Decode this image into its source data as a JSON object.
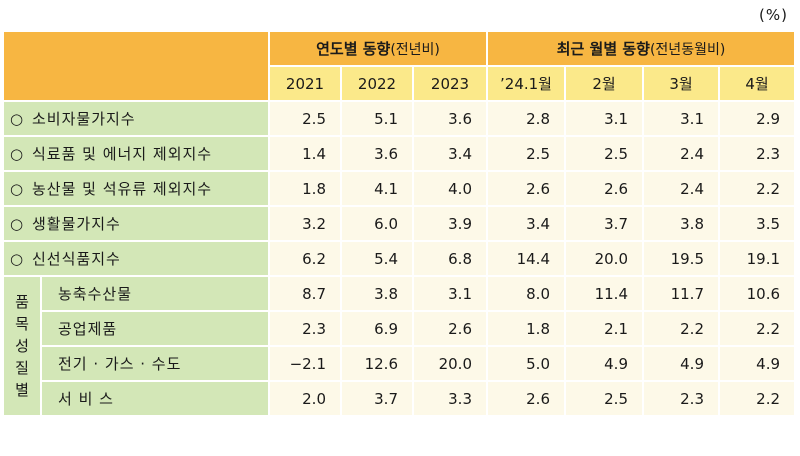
{
  "unit": "(%)",
  "header": {
    "group_annual": "연도별 동향",
    "group_annual_note": "(전년비)",
    "group_monthly": "최근 월별 동향",
    "group_monthly_note": "(전년동월비)",
    "columns": [
      "2021",
      "2022",
      "2023",
      "’24.1월",
      "2월",
      "3월",
      "4월"
    ]
  },
  "rows": [
    {
      "bullet": "○",
      "label": "소비자물가지수",
      "values": [
        "2.5",
        "5.1",
        "3.6",
        "2.8",
        "3.1",
        "3.1",
        "2.9"
      ]
    },
    {
      "bullet": "○",
      "label": "식료품 및 에너지 제외지수",
      "values": [
        "1.4",
        "3.6",
        "3.4",
        "2.5",
        "2.5",
        "2.4",
        "2.3"
      ]
    },
    {
      "bullet": "○",
      "label": "농산물 및 석유류 제외지수",
      "values": [
        "1.8",
        "4.1",
        "4.0",
        "2.6",
        "2.6",
        "2.4",
        "2.2"
      ]
    },
    {
      "bullet": "○",
      "label": "생활물가지수",
      "values": [
        "3.2",
        "6.0",
        "3.9",
        "3.4",
        "3.7",
        "3.8",
        "3.5"
      ]
    },
    {
      "bullet": "○",
      "label": "신선식품지수",
      "values": [
        "6.2",
        "5.4",
        "6.8",
        "14.4",
        "20.0",
        "19.5",
        "19.1"
      ]
    }
  ],
  "group_label_chars": [
    "품",
    "목",
    "성",
    "질",
    "별"
  ],
  "sub_rows": [
    {
      "label": "농축수산물",
      "values": [
        "8.7",
        "3.8",
        "3.1",
        "8.0",
        "11.4",
        "11.7",
        "10.6"
      ]
    },
    {
      "label": "공업제품",
      "values": [
        "2.3",
        "6.9",
        "2.6",
        "1.8",
        "2.1",
        "2.2",
        "2.2"
      ]
    },
    {
      "label": "전기 · 가스 · 수도",
      "values": [
        "−2.1",
        "12.6",
        "20.0",
        "5.0",
        "4.9",
        "4.9",
        "4.9"
      ]
    },
    {
      "label": "서 비 스",
      "values": [
        "2.0",
        "3.7",
        "3.3",
        "2.6",
        "2.5",
        "2.3",
        "2.2"
      ]
    }
  ]
}
